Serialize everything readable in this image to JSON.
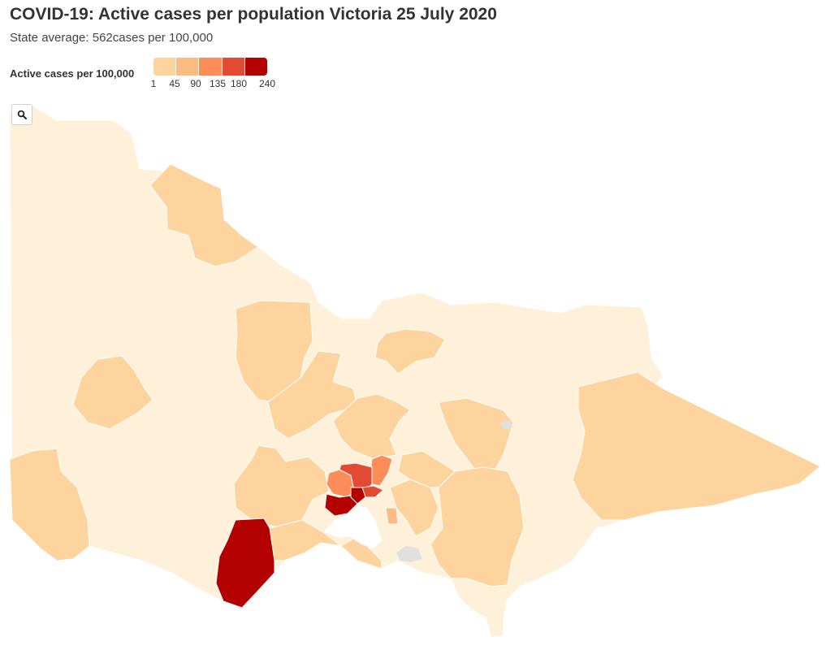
{
  "header": {
    "title": "COVID-19: Active cases per population Victoria 25 July 2020",
    "subtitle": "State average: 562cases per 100,000"
  },
  "legend": {
    "title": "Active cases per 100,000",
    "colors": [
      "#fdd49e",
      "#fdbb84",
      "#fc8d59",
      "#e34a33",
      "#b30000"
    ],
    "labels": [
      "1",
      "45",
      "90",
      "135",
      "180",
      "240"
    ]
  },
  "map": {
    "no_data_color": "#fef0d9",
    "missing_color": "#e0e0e0",
    "zoom_icon": "magnifier-icon"
  }
}
